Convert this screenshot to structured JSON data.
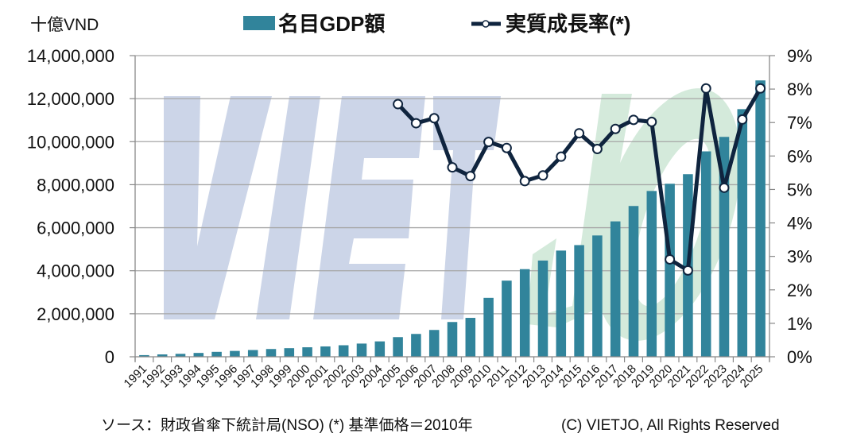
{
  "chart_data": {
    "type": "bar+line",
    "title": "",
    "left_axis": {
      "unit_label": "十億VND",
      "ylim": [
        0,
        14000000
      ],
      "ticks": [
        "0",
        "2,000,000",
        "4,000,000",
        "6,000,000",
        "8,000,000",
        "10,000,000",
        "12,000,000",
        "14,000,000"
      ],
      "tick_values": [
        0,
        2000000,
        4000000,
        6000000,
        8000000,
        10000000,
        12000000,
        14000000
      ]
    },
    "right_axis": {
      "ylim": [
        0,
        9
      ],
      "ticks": [
        "0%",
        "1%",
        "2%",
        "3%",
        "4%",
        "5%",
        "6%",
        "7%",
        "8%",
        "9%"
      ],
      "tick_values": [
        0,
        1,
        2,
        3,
        4,
        5,
        6,
        7,
        8,
        9
      ]
    },
    "categories": [
      "1991",
      "1992",
      "1993",
      "1994",
      "1995",
      "1996",
      "1997",
      "1998",
      "1999",
      "2000",
      "2001",
      "2002",
      "2003",
      "2004",
      "2005",
      "2006",
      "2007",
      "2008",
      "2009",
      "2010",
      "2011",
      "2012",
      "2013",
      "2014",
      "2015",
      "2016",
      "2017",
      "2018",
      "2019",
      "2020",
      "2021",
      "2022",
      "2023",
      "2024",
      "2025"
    ],
    "series": [
      {
        "name": "名目GDP額",
        "type": "bar",
        "axis": "left",
        "color": "#31849b",
        "values": [
          76700,
          110500,
          136600,
          178500,
          228900,
          272000,
          313600,
          361000,
          399900,
          441600,
          481300,
          535800,
          613400,
          715300,
          914000,
          1061600,
          1246800,
          1616000,
          1809100,
          2739800,
          3539900,
          4073800,
          4473700,
          4937000,
          5191300,
          5639400,
          6293900,
          7009000,
          7707200,
          8044400,
          8487500,
          9548700,
          10221800,
          11511900,
          12847600
        ]
      },
      {
        "name": "実質成長率(*)",
        "type": "line",
        "axis": "right",
        "color": "#0f243e",
        "marker": "circle-white",
        "start_index": 14,
        "values": [
          7.55,
          6.98,
          7.13,
          5.66,
          5.4,
          6.42,
          6.24,
          5.25,
          5.42,
          5.98,
          6.68,
          6.21,
          6.81,
          7.08,
          7.02,
          2.91,
          2.58,
          8.02,
          5.05,
          7.09,
          8.02
        ]
      }
    ],
    "grid": true,
    "legend": "top-center",
    "watermark": "VIETJO"
  },
  "legend": {
    "bar_label": "名目GDP額",
    "line_label": "実質成長率(*)"
  },
  "footer": {
    "source": "ソース：財政省傘下統計局(NSO)  (*) 基準価格＝2010年",
    "copyright": "(C) VIETJO, All Rights Reserved"
  },
  "colors": {
    "bar": "#31849b",
    "line": "#0f243e",
    "grid": "#a6a6a6",
    "watermark_blue": "#ccd5e8",
    "watermark_green": "#d4eadb"
  }
}
